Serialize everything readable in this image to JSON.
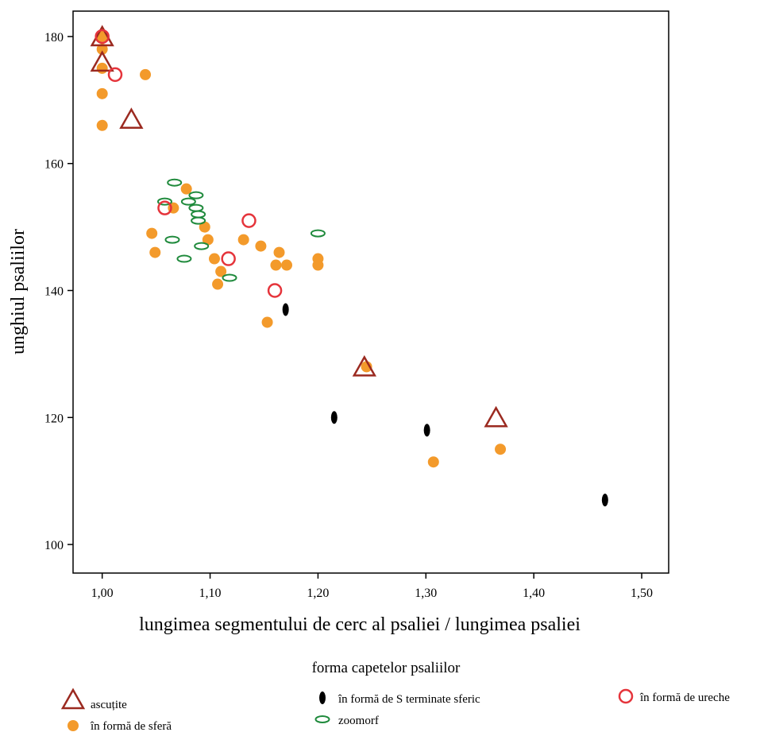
{
  "chart_data": {
    "type": "scatter",
    "xlabel": "lungimea segmentului de cerc al psaliei / lungimea psaliei",
    "ylabel": "unghiul psaliilor",
    "xlim": [
      0.973,
      1.525
    ],
    "ylim": [
      95.5,
      184
    ],
    "xticks": [
      "1,00",
      "1,10",
      "1,20",
      "1,30",
      "1,40",
      "1,50"
    ],
    "xtick_values": [
      1.0,
      1.1,
      1.2,
      1.3,
      1.4,
      1.5
    ],
    "yticks": [
      "100",
      "120",
      "140",
      "160",
      "180"
    ],
    "ytick_values": [
      100,
      120,
      140,
      160,
      180
    ],
    "grid": false,
    "legend_title": "forma capetelor psaliilor",
    "legend_position": "bottom",
    "series": [
      {
        "name": "ascuțite",
        "marker": "triangle",
        "color": "#9b2a20",
        "points": [
          [
            1.0,
            180
          ],
          [
            1.0,
            176
          ],
          [
            1.027,
            167
          ],
          [
            1.243,
            128
          ],
          [
            1.365,
            120
          ]
        ]
      },
      {
        "name": "în formă de sferă",
        "marker": "filled-circle",
        "color": "#f39a2b",
        "points": [
          [
            1.0,
            180
          ],
          [
            1.0,
            178
          ],
          [
            1.0,
            175
          ],
          [
            1.0,
            171
          ],
          [
            1.0,
            166
          ],
          [
            1.04,
            174
          ],
          [
            1.078,
            156
          ],
          [
            1.066,
            153
          ],
          [
            1.046,
            149
          ],
          [
            1.049,
            146
          ],
          [
            1.095,
            150
          ],
          [
            1.098,
            148
          ],
          [
            1.104,
            145
          ],
          [
            1.11,
            143
          ],
          [
            1.107,
            141
          ],
          [
            1.131,
            148
          ],
          [
            1.147,
            147
          ],
          [
            1.164,
            146
          ],
          [
            1.161,
            144
          ],
          [
            1.171,
            144
          ],
          [
            1.153,
            135
          ],
          [
            1.2,
            145
          ],
          [
            1.2,
            144
          ],
          [
            1.245,
            128
          ],
          [
            1.307,
            113
          ],
          [
            1.369,
            115
          ]
        ]
      },
      {
        "name": "în formă de S terminate sferic",
        "marker": "vertical-ellipse",
        "color": "#000000",
        "points": [
          [
            1.17,
            137
          ],
          [
            1.215,
            120
          ],
          [
            1.301,
            118
          ],
          [
            1.466,
            107
          ]
        ]
      },
      {
        "name": "zoomorf",
        "marker": "open-ellipse",
        "color": "#1f8a3c",
        "points": [
          [
            1.067,
            157
          ],
          [
            1.087,
            155
          ],
          [
            1.058,
            154
          ],
          [
            1.08,
            154
          ],
          [
            1.087,
            153
          ],
          [
            1.089,
            152
          ],
          [
            1.089,
            151
          ],
          [
            1.065,
            148
          ],
          [
            1.092,
            147
          ],
          [
            1.076,
            145
          ],
          [
            1.118,
            142
          ],
          [
            1.2,
            149
          ]
        ]
      },
      {
        "name": "în formă de ureche",
        "marker": "open-circle",
        "color": "#e5343b",
        "points": [
          [
            1.0,
            180
          ],
          [
            1.012,
            174
          ],
          [
            1.058,
            153
          ],
          [
            1.136,
            151
          ],
          [
            1.117,
            145
          ],
          [
            1.16,
            140
          ]
        ]
      }
    ]
  }
}
